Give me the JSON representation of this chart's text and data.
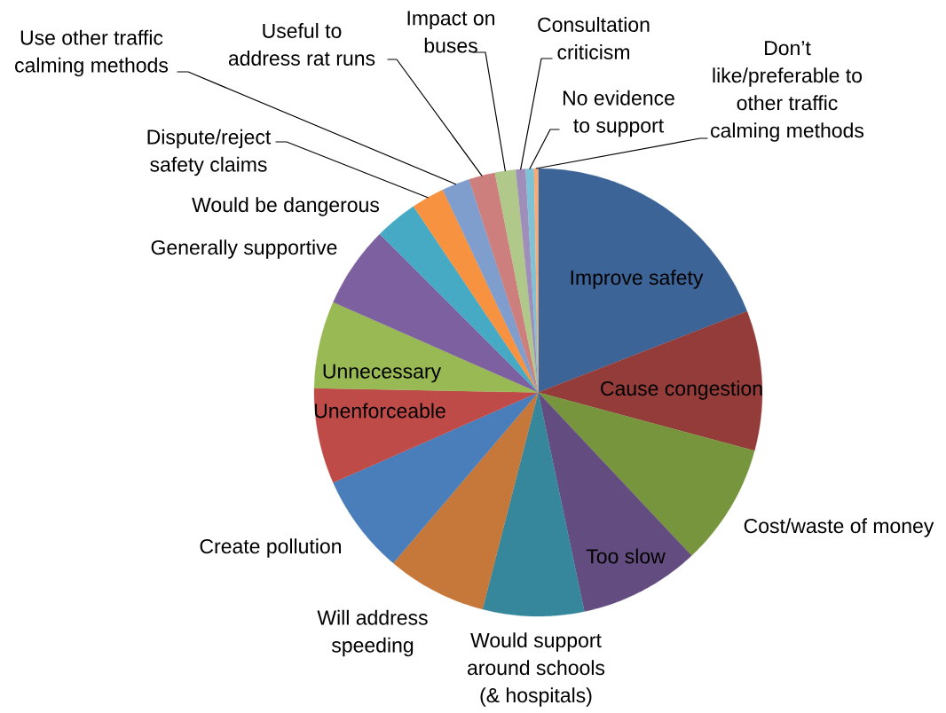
{
  "chart_data": {
    "type": "pie",
    "categories": [
      "Improve safety",
      "Cause congestion",
      "Cost/waste of money",
      "Too slow",
      "Would support around schools (& hospitals)",
      "Will address speeding",
      "Create pollution",
      "Unenforceable",
      "Unnecessary",
      "Generally supportive",
      "Would be dangerous",
      "Dispute/reject safety claims",
      "Use other traffic calming methods",
      "Useful to address rat runs",
      "Impact on buses",
      "Consultation criticism",
      "No evidence to support",
      "Don’t like/preferable to other traffic calming methods"
    ],
    "values": [
      19.1,
      10.1,
      8.8,
      8.7,
      7.3,
      7.2,
      7.2,
      6.9,
      6.3,
      5.9,
      3.1,
      2.4,
      2.0,
      1.9,
      1.5,
      0.7,
      0.6,
      0.3
    ],
    "colors": [
      "#3c6496",
      "#943c3a",
      "#77953d",
      "#634c7f",
      "#37879c",
      "#c6773a",
      "#4a7ebb",
      "#be4b48",
      "#98b954",
      "#7d60a0",
      "#46aac5",
      "#f69240",
      "#7f9ece",
      "#cd7f7d",
      "#b0c98a",
      "#9f8eba",
      "#7fc2d6",
      "#f9ac73"
    ]
  }
}
